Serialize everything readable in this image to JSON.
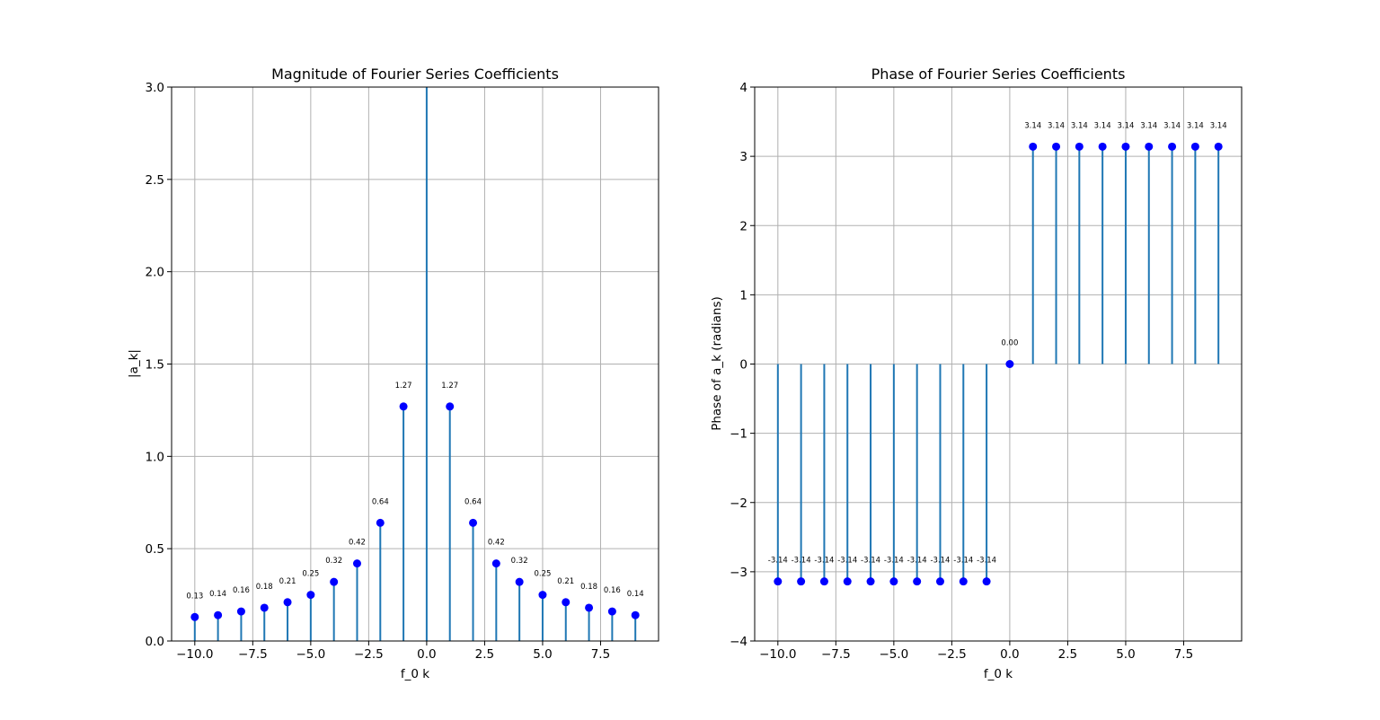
{
  "chart_data": [
    {
      "type": "stem",
      "title": "Magnitude of Fourier Series Coefficients",
      "xlabel": "f_0 k",
      "ylabel": "|a_k|",
      "xlim": [
        -11,
        10
      ],
      "ylim": [
        0,
        3
      ],
      "xticks": [
        -10,
        -7.5,
        -5,
        -2.5,
        0,
        2.5,
        5,
        7.5
      ],
      "xtick_labels": [
        "−10.0",
        "−7.5",
        "−5.0",
        "−2.5",
        "0.0",
        "2.5",
        "5.0",
        "7.5"
      ],
      "yticks": [
        0,
        0.5,
        1,
        1.5,
        2,
        2.5,
        3
      ],
      "ytick_labels": [
        "0.0",
        "0.5",
        "1.0",
        "1.5",
        "2.0",
        "2.5",
        "3.0"
      ],
      "grid": true,
      "stem_color": "#1f77b4",
      "marker_color": "#0000ff",
      "x": [
        -10,
        -9,
        -8,
        -7,
        -6,
        -5,
        -4,
        -3,
        -2,
        -1,
        0,
        1,
        2,
        3,
        4,
        5,
        6,
        7,
        8,
        9
      ],
      "y": [
        0.13,
        0.14,
        0.16,
        0.18,
        0.21,
        0.25,
        0.32,
        0.42,
        0.64,
        1.27,
        3.2,
        1.27,
        0.64,
        0.42,
        0.32,
        0.25,
        0.21,
        0.18,
        0.16,
        0.14
      ],
      "markers": [
        true,
        true,
        true,
        true,
        true,
        true,
        true,
        true,
        true,
        true,
        false,
        true,
        true,
        true,
        true,
        true,
        true,
        true,
        true,
        true
      ],
      "point_labels": [
        "0.13",
        "0.14",
        "0.16",
        "0.18",
        "0.21",
        "0.25",
        "0.32",
        "0.42",
        "0.64",
        "1.27",
        "",
        "1.27",
        "0.64",
        "0.42",
        "0.32",
        "0.25",
        "0.21",
        "0.18",
        "0.16",
        "0.14"
      ]
    },
    {
      "type": "stem",
      "title": "Phase of Fourier Series Coefficients",
      "xlabel": "f_0 k",
      "ylabel": "Phase of a_k (radians)",
      "xlim": [
        -11,
        10
      ],
      "ylim": [
        -4,
        4
      ],
      "xticks": [
        -10,
        -7.5,
        -5,
        -2.5,
        0,
        2.5,
        5,
        7.5
      ],
      "xtick_labels": [
        "−10.0",
        "−7.5",
        "−5.0",
        "−2.5",
        "0.0",
        "2.5",
        "5.0",
        "7.5"
      ],
      "yticks": [
        -4,
        -3,
        -2,
        -1,
        0,
        1,
        2,
        3,
        4
      ],
      "ytick_labels": [
        "−4",
        "−3",
        "−2",
        "−1",
        "0",
        "1",
        "2",
        "3",
        "4"
      ],
      "grid": true,
      "stem_color": "#1f77b4",
      "marker_color": "#0000ff",
      "x": [
        -10,
        -9,
        -8,
        -7,
        -6,
        -5,
        -4,
        -3,
        -2,
        -1,
        0,
        1,
        2,
        3,
        4,
        5,
        6,
        7,
        8,
        9
      ],
      "y": [
        -3.14,
        -3.14,
        -3.14,
        -3.14,
        -3.14,
        -3.14,
        -3.14,
        -3.14,
        -3.14,
        -3.14,
        0.0,
        3.14,
        3.14,
        3.14,
        3.14,
        3.14,
        3.14,
        3.14,
        3.14,
        3.14
      ],
      "markers": [
        true,
        true,
        true,
        true,
        true,
        true,
        true,
        true,
        true,
        true,
        true,
        true,
        true,
        true,
        true,
        true,
        true,
        true,
        true,
        true
      ],
      "point_labels": [
        "-3.14",
        "-3.14",
        "-3.14",
        "-3.14",
        "-3.14",
        "-3.14",
        "-3.14",
        "-3.14",
        "-3.14",
        "-3.14",
        "0.00",
        "3.14",
        "3.14",
        "3.14",
        "3.14",
        "3.14",
        "3.14",
        "3.14",
        "3.14",
        "3.14"
      ]
    }
  ]
}
